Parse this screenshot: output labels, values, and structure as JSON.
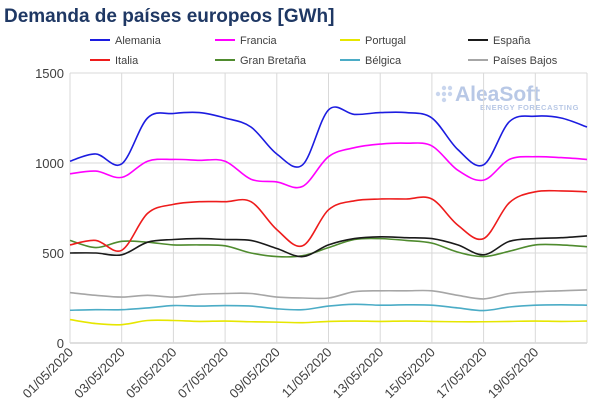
{
  "chart_data": {
    "type": "line",
    "title": "Demanda de países europeos [GWh]",
    "xlabel": "",
    "ylabel": "",
    "ylim": [
      0,
      1500
    ],
    "y_ticks": [
      0,
      500,
      1000,
      1500
    ],
    "grid": true,
    "legend_position": "top",
    "x": [
      "01/05/2020",
      "02/05/2020",
      "03/05/2020",
      "04/05/2020",
      "05/05/2020",
      "06/05/2020",
      "07/05/2020",
      "08/05/2020",
      "09/05/2020",
      "10/05/2020",
      "11/05/2020",
      "12/05/2020",
      "13/05/2020",
      "14/05/2020",
      "15/05/2020",
      "16/05/2020",
      "17/05/2020",
      "18/05/2020",
      "19/05/2020",
      "20/05/2020",
      "21/05/2020"
    ],
    "x_tick_labels": [
      "01/05/2020",
      "03/05/2020",
      "05/05/2020",
      "07/05/2020",
      "09/05/2020",
      "11/05/2020",
      "13/05/2020",
      "15/05/2020",
      "17/05/2020",
      "19/05/2020"
    ],
    "series": [
      {
        "name": "Alemania",
        "color": "#1c1ce0",
        "values": [
          1010,
          1050,
          995,
          1250,
          1275,
          1280,
          1250,
          1200,
          1050,
          990,
          1295,
          1270,
          1280,
          1280,
          1250,
          1075,
          990,
          1230,
          1260,
          1250,
          1200
        ]
      },
      {
        "name": "Francia",
        "color": "#ff00ff",
        "values": [
          940,
          955,
          920,
          1010,
          1020,
          1015,
          1010,
          910,
          895,
          870,
          1035,
          1085,
          1105,
          1110,
          1095,
          960,
          905,
          1020,
          1035,
          1030,
          1020
        ]
      },
      {
        "name": "Portugal",
        "color": "#e6e600",
        "values": [
          130,
          108,
          102,
          125,
          125,
          120,
          122,
          118,
          116,
          113,
          120,
          122,
          120,
          122,
          120,
          118,
          118,
          120,
          122,
          120,
          122
        ]
      },
      {
        "name": "España",
        "color": "#1a1a1a",
        "values": [
          500,
          500,
          490,
          560,
          575,
          580,
          575,
          570,
          525,
          480,
          545,
          580,
          590,
          585,
          580,
          545,
          490,
          565,
          580,
          585,
          595
        ]
      },
      {
        "name": "Italia",
        "color": "#ee1c1c",
        "values": [
          545,
          570,
          515,
          720,
          770,
          785,
          785,
          785,
          630,
          540,
          740,
          790,
          800,
          800,
          800,
          655,
          580,
          780,
          840,
          845,
          840
        ]
      },
      {
        "name": "Gran Bretaña",
        "color": "#4f8b2e",
        "values": [
          570,
          530,
          565,
          560,
          545,
          545,
          540,
          500,
          480,
          485,
          530,
          575,
          580,
          570,
          555,
          505,
          480,
          510,
          545,
          545,
          535
        ]
      },
      {
        "name": "Bélgica",
        "color": "#4bacc6",
        "values": [
          182,
          185,
          185,
          195,
          208,
          205,
          208,
          205,
          190,
          185,
          205,
          215,
          210,
          212,
          210,
          195,
          180,
          200,
          210,
          212,
          210
        ]
      },
      {
        "name": "Países Bajos",
        "color": "#a6a6a6",
        "values": [
          280,
          265,
          255,
          265,
          255,
          270,
          275,
          275,
          255,
          250,
          250,
          285,
          290,
          290,
          290,
          265,
          245,
          275,
          285,
          290,
          295
        ]
      }
    ]
  },
  "logo": {
    "name": "AleaSoft",
    "tagline": "ENERGY FORECASTING"
  }
}
